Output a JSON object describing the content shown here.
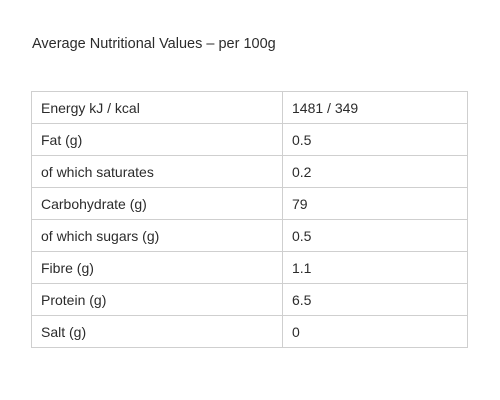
{
  "heading": "Average Nutritional Values – per 100g",
  "rows": [
    {
      "label": "Energy kJ / kcal",
      "value": "1481 / 349"
    },
    {
      "label": "Fat (g)",
      "value": "0.5"
    },
    {
      "label": "of which saturates",
      "value": "0.2"
    },
    {
      "label": "Carbohydrate (g)",
      "value": "79"
    },
    {
      "label": "of which sugars (g)",
      "value": "0.5"
    },
    {
      "label": "Fibre (g)",
      "value": "1.1"
    },
    {
      "label": "Protein (g)",
      "value": "6.5"
    },
    {
      "label": "Salt (g)",
      "value": "0"
    }
  ]
}
